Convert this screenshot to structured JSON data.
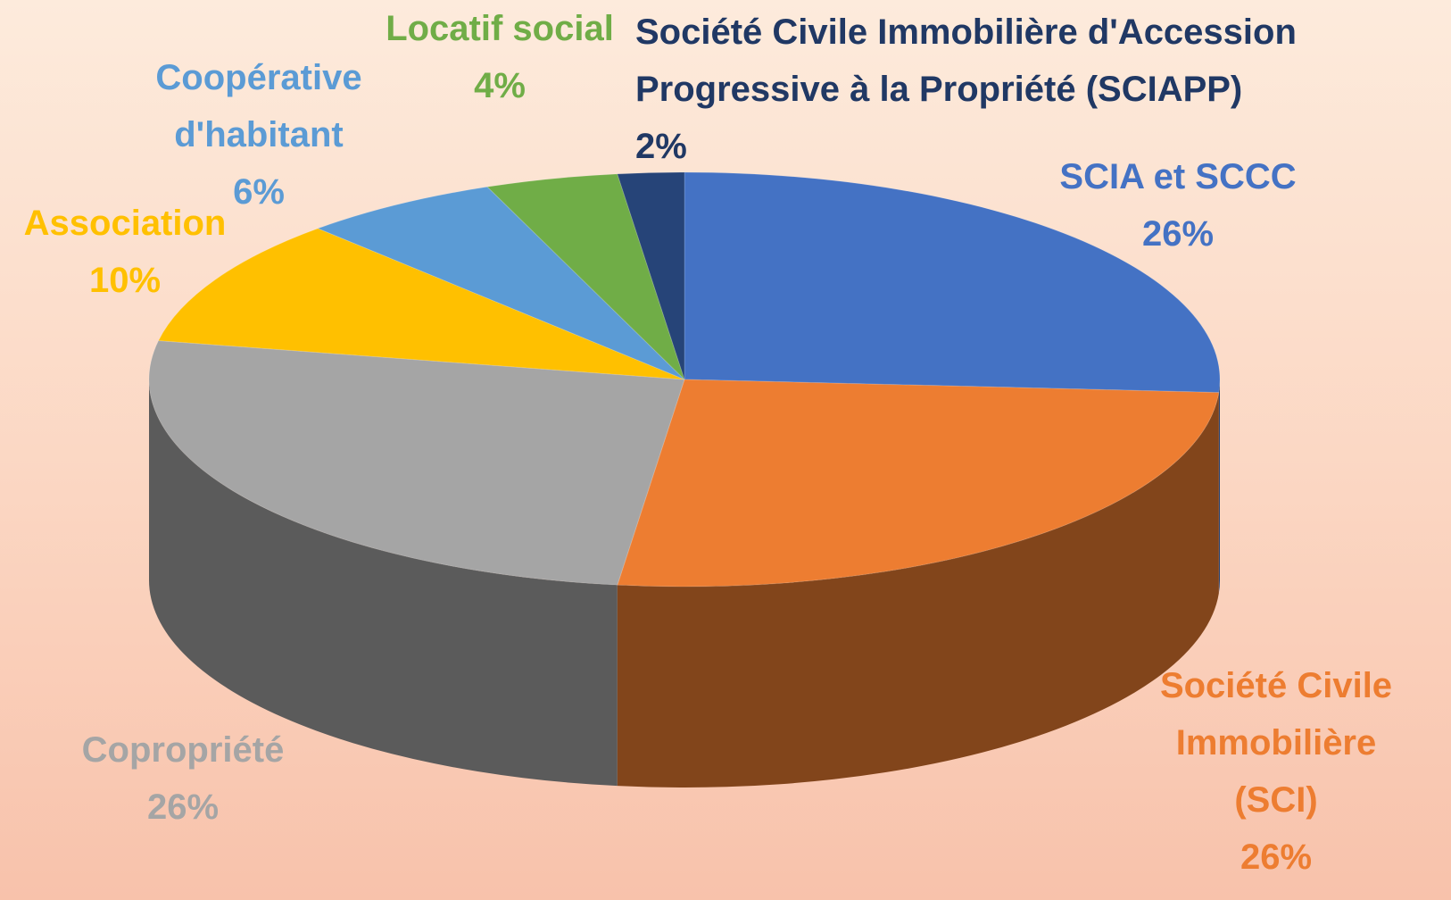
{
  "chart_data": {
    "type": "pie",
    "categories": [
      "SCIA et SCCC",
      "Société Civile Immobilière (SCI)",
      "Copropriété",
      "Association",
      "Coopérative d'habitant",
      "Locatif social",
      "Société Civile Immobilière d'Accession Progressive à la Propriété (SCIAPP)"
    ],
    "values": [
      26,
      26,
      26,
      10,
      6,
      4,
      2
    ],
    "value_labels": [
      "26%",
      "26%",
      "26%",
      "10%",
      "6%",
      "4%",
      "2%"
    ],
    "colors": [
      "#4472c4",
      "#ed7d31",
      "#a5a5a5",
      "#ffc000",
      "#5b9bd5",
      "#70ad47",
      "#264478"
    ]
  }
}
